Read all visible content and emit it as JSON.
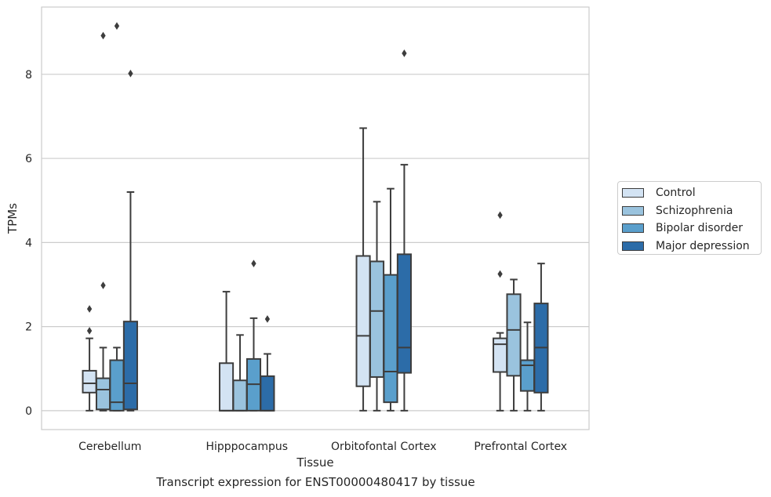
{
  "chart_data": {
    "type": "box",
    "xlabel": "Tissue",
    "ylabel": "TPMs",
    "caption": "Transcript expression for ENST00000480417 by tissue",
    "ylim": [
      -0.45,
      9.6
    ],
    "yticks": [
      0,
      2,
      4,
      6,
      8
    ],
    "grid": "horizontal",
    "legend_position": "right",
    "categories": [
      "Cerebellum",
      "Hipppocampus",
      "Orbitofontal Cortex",
      "Prefrontal Cortex"
    ],
    "series": [
      {
        "name": "Control",
        "color": "#d3e3f3",
        "boxes": [
          {
            "whislo": 0.0,
            "q1": 0.43,
            "med": 0.65,
            "q3": 0.95,
            "whishi": 1.72,
            "fliers": [
              1.9,
              2.42
            ]
          },
          {
            "whislo": 0.0,
            "q1": 0.0,
            "med": 0.0,
            "q3": 1.13,
            "whishi": 2.83,
            "fliers": []
          },
          {
            "whislo": 0.0,
            "q1": 0.58,
            "med": 1.78,
            "q3": 3.68,
            "whishi": 6.72,
            "fliers": []
          },
          {
            "whislo": 0.0,
            "q1": 0.92,
            "med": 1.58,
            "q3": 1.72,
            "whishi": 1.85,
            "fliers": [
              3.25,
              4.65
            ]
          }
        ]
      },
      {
        "name": "Schizophrenia",
        "color": "#9ac3de",
        "boxes": [
          {
            "whislo": 0.0,
            "q1": 0.03,
            "med": 0.5,
            "q3": 0.77,
            "whishi": 1.5,
            "fliers": [
              2.98,
              8.92
            ]
          },
          {
            "whislo": 0.0,
            "q1": 0.0,
            "med": 0.0,
            "q3": 0.72,
            "whishi": 1.8,
            "fliers": []
          },
          {
            "whislo": 0.0,
            "q1": 0.8,
            "med": 2.37,
            "q3": 3.55,
            "whishi": 4.97,
            "fliers": []
          },
          {
            "whislo": 0.0,
            "q1": 0.83,
            "med": 1.92,
            "q3": 2.77,
            "whishi": 3.12,
            "fliers": []
          }
        ]
      },
      {
        "name": "Bipolar disorder",
        "color": "#5a9fcc",
        "boxes": [
          {
            "whislo": 0.0,
            "q1": 0.0,
            "med": 0.2,
            "q3": 1.2,
            "whishi": 1.5,
            "fliers": [
              9.15
            ]
          },
          {
            "whislo": 0.0,
            "q1": 0.0,
            "med": 0.63,
            "q3": 1.23,
            "whishi": 2.2,
            "fliers": [
              3.5
            ]
          },
          {
            "whislo": 0.0,
            "q1": 0.2,
            "med": 0.93,
            "q3": 3.23,
            "whishi": 5.28,
            "fliers": []
          },
          {
            "whislo": 0.0,
            "q1": 0.47,
            "med": 1.08,
            "q3": 1.2,
            "whishi": 2.1,
            "fliers": []
          }
        ]
      },
      {
        "name": "Major depression",
        "color": "#2c6ca8",
        "boxes": [
          {
            "whislo": 0.0,
            "q1": 0.03,
            "med": 0.65,
            "q3": 2.12,
            "whishi": 5.2,
            "fliers": [
              8.02
            ]
          },
          {
            "whislo": 0.0,
            "q1": 0.0,
            "med": 0.0,
            "q3": 0.82,
            "whishi": 1.35,
            "fliers": [
              2.18
            ]
          },
          {
            "whislo": 0.0,
            "q1": 0.9,
            "med": 1.5,
            "q3": 3.72,
            "whishi": 5.85,
            "fliers": [
              8.5
            ]
          },
          {
            "whislo": 0.0,
            "q1": 0.43,
            "med": 1.5,
            "q3": 2.55,
            "whishi": 3.5,
            "fliers": []
          }
        ]
      }
    ]
  }
}
